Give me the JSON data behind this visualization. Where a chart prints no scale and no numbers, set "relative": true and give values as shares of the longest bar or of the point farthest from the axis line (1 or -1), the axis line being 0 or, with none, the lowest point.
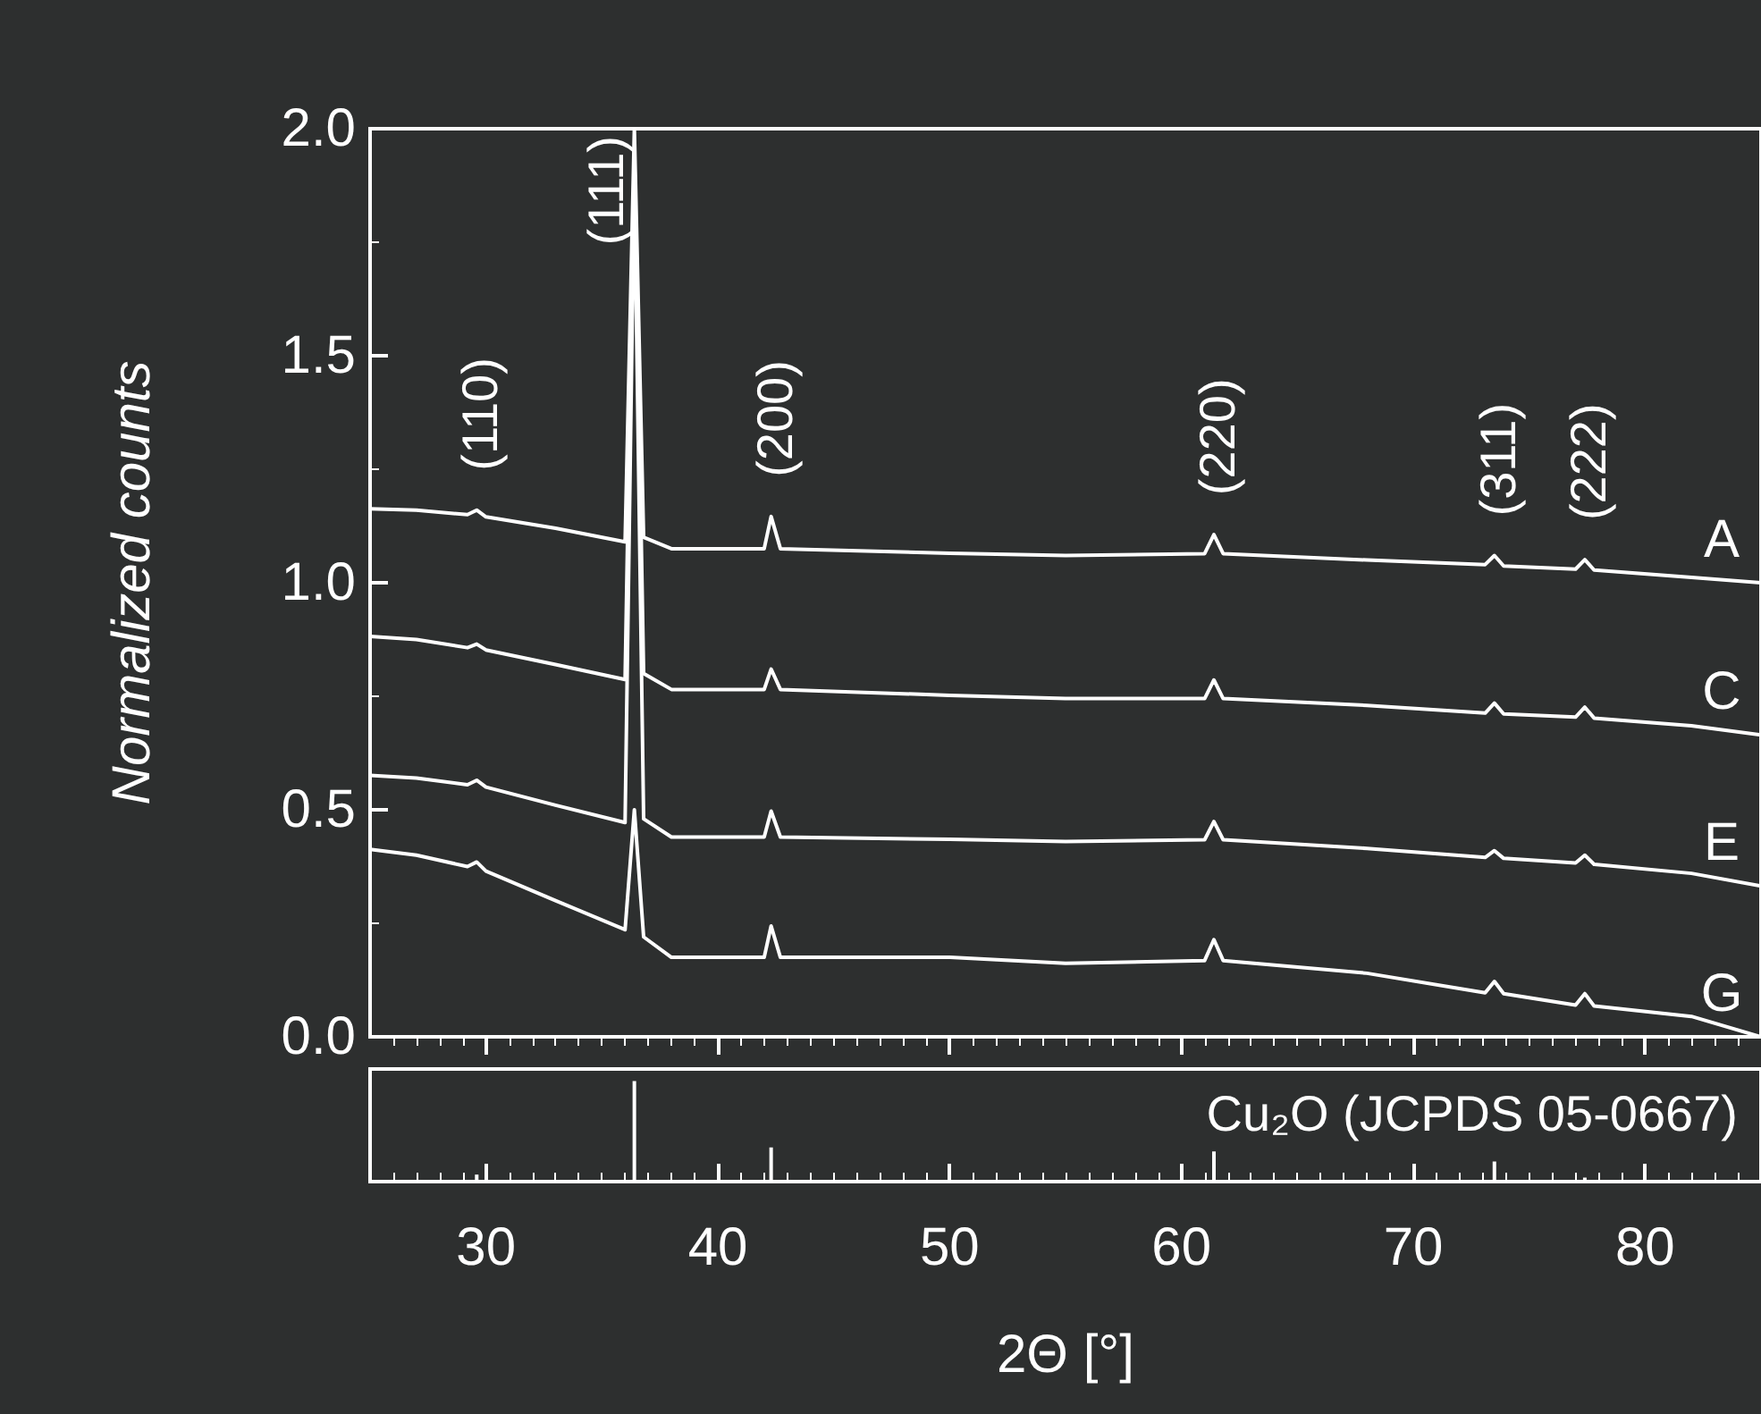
{
  "chart_data": [
    {
      "type": "line",
      "ylabel": "Normalized counts",
      "xlim": [
        25,
        85
      ],
      "xticks": [
        30,
        40,
        50,
        60,
        70,
        80
      ],
      "ylim": [
        0,
        2
      ],
      "yticks": [
        {
          "value": 0,
          "label": "0.0"
        },
        {
          "value": 0.5,
          "label": "0.5"
        },
        {
          "value": 1,
          "label": "1.0"
        },
        {
          "value": 1.5,
          "label": "1.5"
        },
        {
          "value": 2,
          "label": "2.0"
        }
      ],
      "tick_labels": "y",
      "grid": false,
      "legend": false,
      "marker": "none",
      "line_style": "solid",
      "x": [
        25,
        27,
        29.2,
        29.6,
        30,
        33,
        36.0,
        36.4,
        36.8,
        38,
        42.0,
        42.3,
        42.7,
        50,
        55,
        61.0,
        61.4,
        61.8,
        68,
        73.1,
        73.5,
        73.9,
        77.0,
        77.4,
        77.8,
        82,
        85
      ],
      "series": [
        {
          "name": "A",
          "color": "#ffffff",
          "values": [
            1.163,
            1.16,
            1.15,
            1.16,
            1.145,
            1.12,
            1.09,
            2.0,
            1.1,
            1.075,
            1.075,
            1.146,
            1.075,
            1.065,
            1.06,
            1.064,
            1.106,
            1.064,
            1.05,
            1.04,
            1.06,
            1.037,
            1.03,
            1.051,
            1.028,
            1.012,
            1.0
          ]
        },
        {
          "name": "C",
          "color": "#ffffff",
          "values": [
            0.882,
            0.875,
            0.857,
            0.865,
            0.852,
            0.82,
            0.787,
            1.95,
            0.8,
            0.765,
            0.765,
            0.81,
            0.765,
            0.752,
            0.745,
            0.745,
            0.786,
            0.745,
            0.73,
            0.713,
            0.735,
            0.711,
            0.704,
            0.726,
            0.702,
            0.685,
            0.665
          ]
        },
        {
          "name": "E",
          "color": "#ffffff",
          "values": [
            0.576,
            0.57,
            0.555,
            0.565,
            0.55,
            0.51,
            0.472,
            1.9,
            0.48,
            0.44,
            0.44,
            0.497,
            0.44,
            0.435,
            0.43,
            0.434,
            0.474,
            0.434,
            0.415,
            0.395,
            0.41,
            0.393,
            0.383,
            0.4,
            0.38,
            0.36,
            0.332
          ]
        },
        {
          "name": "G",
          "color": "#ffffff",
          "values": [
            0.413,
            0.4,
            0.375,
            0.385,
            0.365,
            0.3,
            0.236,
            0.5,
            0.22,
            0.175,
            0.175,
            0.244,
            0.175,
            0.175,
            0.162,
            0.168,
            0.214,
            0.168,
            0.14,
            0.097,
            0.122,
            0.095,
            0.07,
            0.095,
            0.068,
            0.045,
            0.0
          ]
        }
      ],
      "annotations": [
        {
          "text": "(110)",
          "x": 29.6,
          "y": 1.16
        },
        {
          "text": "(111)",
          "x": 36.4,
          "y": 2.0
        },
        {
          "text": "(200)",
          "x": 42.3,
          "y": 1.146
        },
        {
          "text": "(220)",
          "x": 61.4,
          "y": 1.106
        },
        {
          "text": "(311)",
          "x": 73.5,
          "y": 1.06
        },
        {
          "text": "(222)",
          "x": 77.4,
          "y": 1.051
        }
      ]
    },
    {
      "type": "bar",
      "title": "Cu₂O (JCPDS 05-0667)",
      "xlabel": "2Θ [°]",
      "relative": true,
      "xlim": [
        25,
        85
      ],
      "xticks": [
        30,
        40,
        50,
        60,
        70,
        80
      ],
      "tick_labels": "x",
      "grid": false,
      "legend": false,
      "color": "#ffffff",
      "x": [
        29.6,
        36.4,
        42.3,
        61.4,
        73.5,
        77.4
      ],
      "values": [
        0.07,
        1,
        0.34,
        0.3,
        0.2,
        0.04
      ]
    }
  ]
}
